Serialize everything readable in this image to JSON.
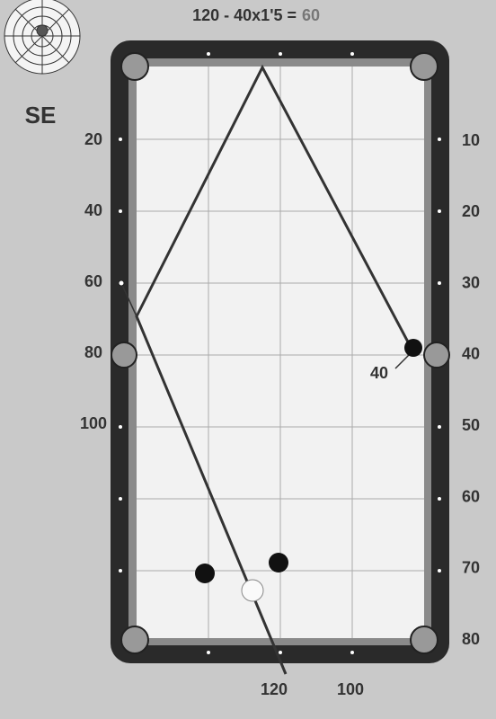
{
  "compass": {
    "label": "SE"
  },
  "formula": {
    "expression": "120 - 40x1'5 =",
    "result": "60"
  },
  "left_scale": [
    20,
    40,
    60,
    80,
    100
  ],
  "right_scale": [
    10,
    20,
    30,
    40,
    50,
    60,
    70,
    80
  ],
  "bottom_scale": [
    120,
    100
  ],
  "annotation": "40"
}
